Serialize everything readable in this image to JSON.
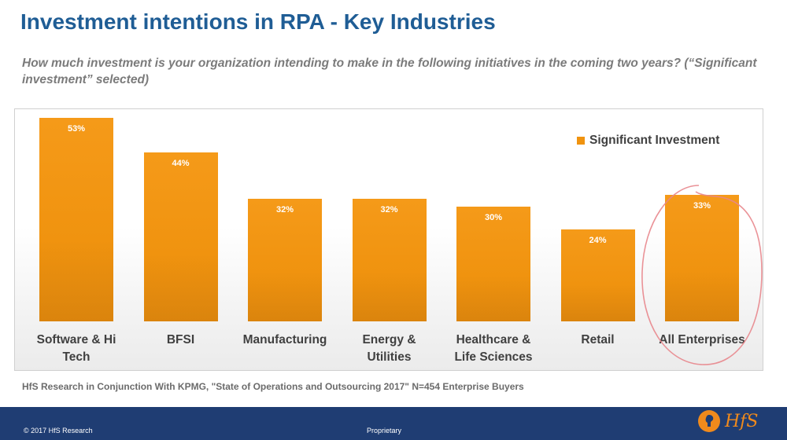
{
  "title": "Investment intentions in RPA - Key Industries",
  "question": "How much investment is your organization intending to make in the following initiatives in the coming two years? (“Significant investment” selected)",
  "chart_data": {
    "type": "bar",
    "categories": [
      "Software & Hi Tech",
      "BFSI",
      "Manufacturing",
      "Energy & Utilities",
      "Healthcare & Life Sciences",
      "Retail",
      "All Enterprises"
    ],
    "category_lines": [
      [
        "Software & Hi",
        "Tech"
      ],
      [
        "BFSI"
      ],
      [
        "Manufacturing"
      ],
      [
        "Energy &",
        "Utilities"
      ],
      [
        "Healthcare &",
        "Life Sciences"
      ],
      [
        "Retail"
      ],
      [
        "All Enterprises"
      ]
    ],
    "series": [
      {
        "name": "Significant Investment",
        "values": [
          53,
          44,
          32,
          32,
          30,
          24,
          33
        ]
      }
    ],
    "value_labels": [
      "53%",
      "44%",
      "32%",
      "32%",
      "30%",
      "24%",
      "33%"
    ],
    "unit": "%",
    "ylim": [
      0,
      60
    ],
    "grid": false,
    "legend": "top-right",
    "bar_color": "#f0930f",
    "highlighted_category": "All Enterprises",
    "highlight_color": "#e8868c"
  },
  "source": "HfS Research in Conjunction With KPMG, \"State of Operations and Outsourcing 2017\" N=454 Enterprise Buyers",
  "footer": {
    "copyright": "© 2017 HfS Research",
    "proprietary": "Proprietary",
    "logo_text": "HfS",
    "logo_icon": "hfs-logo-icon"
  }
}
